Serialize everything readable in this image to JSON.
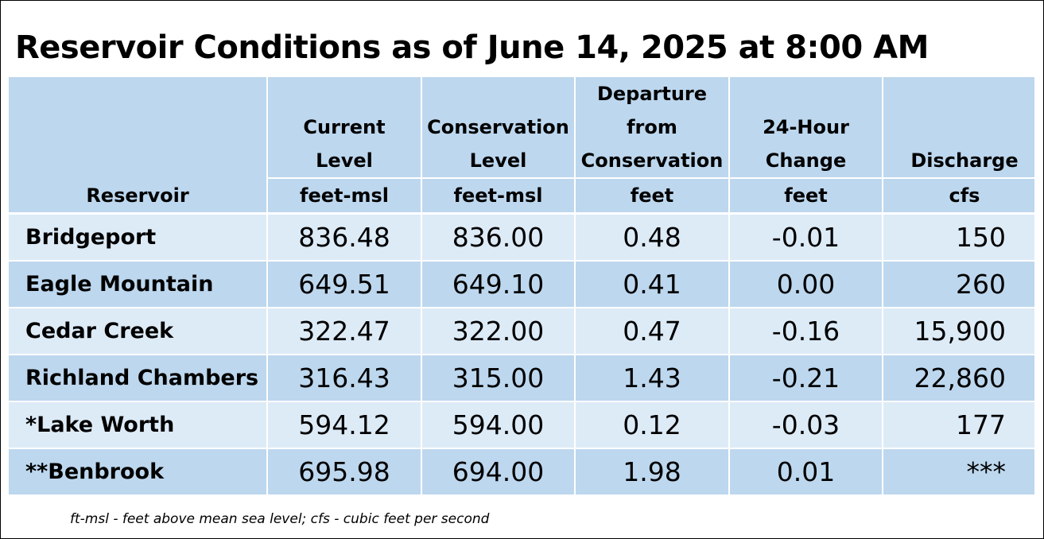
{
  "title": "Reservoir Conditions as of June 14, 2025 at 8:00 AM",
  "table": {
    "headers": [
      {
        "label_lines": [
          "",
          "",
          "",
          "Reservoir"
        ],
        "unit": ""
      },
      {
        "label_lines": [
          "",
          "Current",
          "Level"
        ],
        "unit": "feet-msl"
      },
      {
        "label_lines": [
          "",
          "Conservation",
          "Level"
        ],
        "unit": "feet-msl"
      },
      {
        "label_lines": [
          "Departure",
          "from",
          "Conservation"
        ],
        "unit": "feet"
      },
      {
        "label_lines": [
          "",
          "24-Hour",
          "Change"
        ],
        "unit": "feet"
      },
      {
        "label_lines": [
          "",
          "",
          "Discharge"
        ],
        "unit": "cfs"
      }
    ],
    "rows": [
      {
        "reservoir": "Bridgeport",
        "current": "836.48",
        "conservation": "836.00",
        "departure": "0.48",
        "change": "-0.01",
        "discharge": "150"
      },
      {
        "reservoir": "Eagle Mountain",
        "current": "649.51",
        "conservation": "649.10",
        "departure": "0.41",
        "change": "0.00",
        "discharge": "260"
      },
      {
        "reservoir": "Cedar Creek",
        "current": "322.47",
        "conservation": "322.00",
        "departure": "0.47",
        "change": "-0.16",
        "discharge": "15,900"
      },
      {
        "reservoir": "Richland Chambers",
        "current": "316.43",
        "conservation": "315.00",
        "departure": "1.43",
        "change": "-0.21",
        "discharge": "22,860"
      },
      {
        "reservoir": "*Lake Worth",
        "current": "594.12",
        "conservation": "594.00",
        "departure": "0.12",
        "change": "-0.03",
        "discharge": "177"
      },
      {
        "reservoir": "**Benbrook",
        "current": "695.98",
        "conservation": "694.00",
        "departure": "1.98",
        "change": "0.01",
        "discharge": "***"
      }
    ]
  },
  "footnote": "ft-msl - feet above mean sea level; cfs - cubic feet per second",
  "colors": {
    "header_bg": "#bdd7ee",
    "row_light": "#ddebf7",
    "row_dark": "#bdd7ee"
  }
}
